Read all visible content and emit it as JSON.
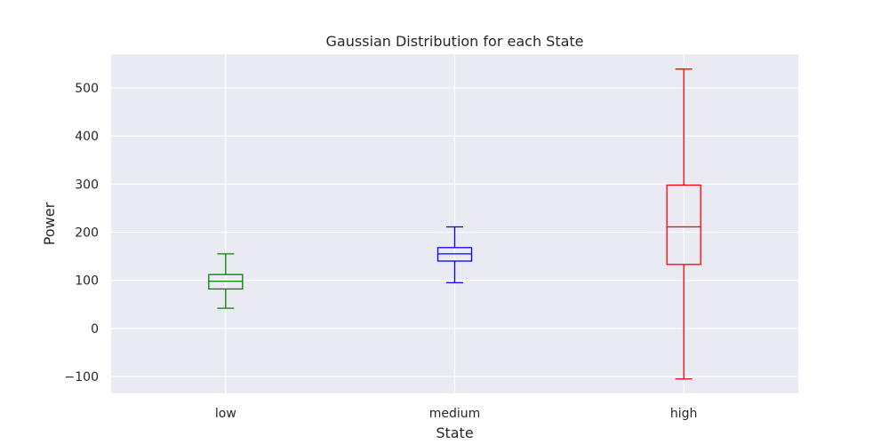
{
  "chart_data": {
    "type": "box",
    "title": "Gaussian Distribution for each State",
    "xlabel": "State",
    "ylabel": "Power",
    "categories": [
      "low",
      "medium",
      "high"
    ],
    "ylim": [
      -135,
      570
    ],
    "yticks": [
      -100,
      0,
      100,
      200,
      300,
      400,
      500
    ],
    "ytick_labels": [
      "−100",
      "0",
      "100",
      "200",
      "300",
      "400",
      "500"
    ],
    "grid": true,
    "background": "#eaeaf2",
    "grid_color": "#ffffff",
    "boxes": [
      {
        "category": "low",
        "whislo": 42,
        "q1": 82,
        "median": 98,
        "q3": 112,
        "whishi": 155,
        "color": "#008000"
      },
      {
        "category": "medium",
        "whislo": 95,
        "q1": 140,
        "median": 155,
        "q3": 168,
        "whishi": 211,
        "color": "#0000ff"
      },
      {
        "category": "high",
        "whislo": -105,
        "q1": 133,
        "median": 211,
        "q3": 298,
        "whishi": 539,
        "color": "#ff0000"
      }
    ]
  }
}
